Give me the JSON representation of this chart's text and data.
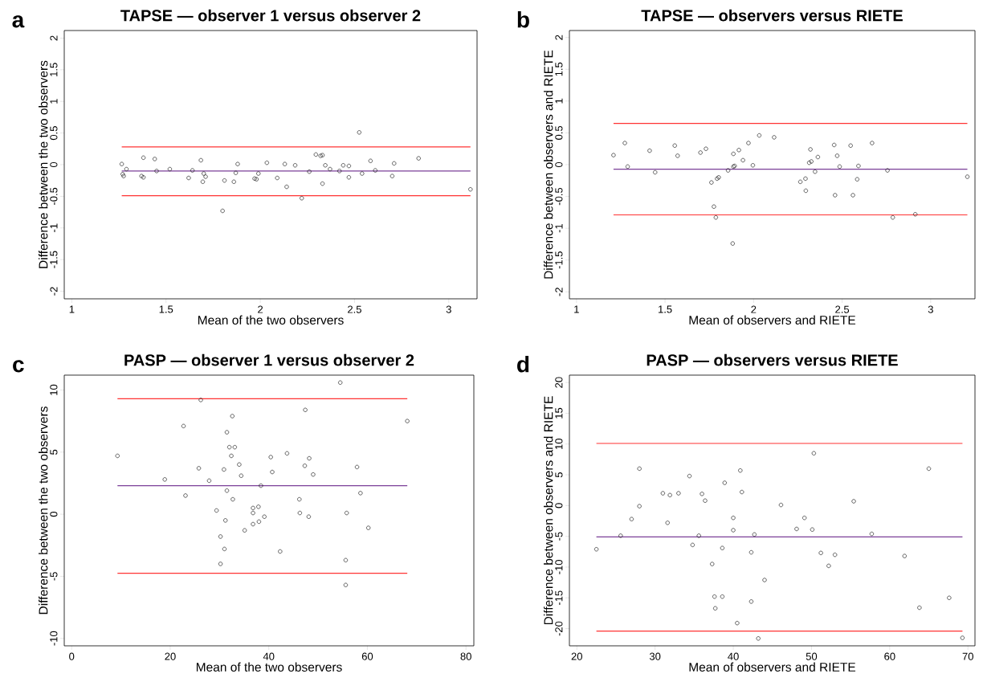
{
  "chart_data": [
    {
      "type": "scatter",
      "title": "TAPSE — observer 1 versus observer 2",
      "xlabel": "Mean of the two observers",
      "ylabel": "Difference between the two observers",
      "annotations": [
        "a"
      ],
      "marker": "circle",
      "color": "#222222",
      "x": [
        1.265,
        1.27,
        1.275,
        1.29,
        1.37,
        1.38,
        1.38,
        1.44,
        1.45,
        1.52,
        1.62,
        1.64,
        1.685,
        1.695,
        1.7,
        1.71,
        1.8,
        1.81,
        1.86,
        1.87,
        1.88,
        1.97,
        1.98,
        1.99,
        2.035,
        2.09,
        2.13,
        2.14,
        2.185,
        2.22,
        2.26,
        2.295,
        2.32,
        2.33,
        2.33,
        2.345,
        2.37,
        2.42,
        2.44,
        2.47,
        2.47,
        2.525,
        2.54,
        2.585,
        2.61,
        2.7,
        2.71,
        2.84,
        3.115
      ],
      "values": [
        0.01,
        -0.15,
        -0.18,
        -0.07,
        -0.18,
        0.11,
        -0.2,
        0.09,
        -0.1,
        -0.07,
        -0.21,
        -0.09,
        0.07,
        -0.27,
        -0.14,
        -0.19,
        -0.73,
        -0.25,
        -0.27,
        -0.13,
        0.01,
        -0.22,
        -0.23,
        -0.14,
        0.03,
        -0.21,
        0.01,
        -0.35,
        -0.01,
        -0.53,
        -0.11,
        0.16,
        0.14,
        0.15,
        -0.3,
        -0.01,
        -0.07,
        -0.1,
        -0.01,
        -0.02,
        -0.2,
        0.51,
        -0.14,
        0.06,
        -0.09,
        -0.18,
        0.02,
        0.1,
        -0.39
      ],
      "xlim": [
        0.96,
        3.15
      ],
      "ylim": [
        -2.12,
        2.12
      ],
      "xticks": [
        1,
        1.5,
        2,
        2.5,
        3
      ],
      "yticks": [
        -2,
        -1.5,
        -1,
        -0.5,
        0,
        0.5,
        1,
        1.5,
        2
      ],
      "ref_lines": [
        {
          "axis": "y",
          "value": 0.28,
          "color": "#ff3333"
        },
        {
          "axis": "y",
          "value": -0.1,
          "color": "#7b3f98"
        },
        {
          "axis": "y",
          "value": -0.49,
          "color": "#ff3333"
        }
      ]
    },
    {
      "type": "scatter",
      "title": "TAPSE — observers versus RIETE",
      "xlabel": "Mean of observers and RIETE",
      "ylabel": "Difference between observers and RIETE",
      "annotations": [
        "b"
      ],
      "marker": "circle",
      "color": "#222222",
      "x": [
        1.209,
        1.273,
        1.289,
        1.413,
        1.444,
        1.555,
        1.571,
        1.7,
        1.731,
        1.762,
        1.776,
        1.787,
        1.794,
        1.803,
        1.856,
        1.882,
        1.886,
        1.886,
        1.893,
        1.917,
        1.94,
        1.971,
        1.996,
        2.032,
        2.116,
        2.264,
        2.293,
        2.295,
        2.314,
        2.321,
        2.326,
        2.347,
        2.363,
        2.455,
        2.46,
        2.472,
        2.486,
        2.548,
        2.561,
        2.585,
        2.592,
        2.669,
        2.756,
        2.786,
        2.913,
        3.207
      ],
      "values": [
        0.15,
        0.34,
        -0.03,
        0.22,
        -0.12,
        0.3,
        0.14,
        0.19,
        0.25,
        -0.28,
        -0.66,
        -0.83,
        -0.22,
        -0.2,
        -0.09,
        -1.24,
        0.17,
        -0.03,
        -0.02,
        0.23,
        0.07,
        0.34,
        -0.01,
        0.46,
        0.43,
        -0.27,
        -0.22,
        -0.41,
        0.03,
        0.24,
        0.05,
        -0.11,
        0.12,
        0.31,
        -0.48,
        0.14,
        -0.03,
        0.3,
        -0.48,
        -0.23,
        -0.02,
        0.34,
        -0.09,
        -0.83,
        -0.78,
        -0.19
      ],
      "xlim": [
        0.96,
        3.25
      ],
      "ylim": [
        -2.11,
        2.11
      ],
      "xticks": [
        1,
        1.5,
        2,
        2.5,
        3
      ],
      "yticks": [
        -2,
        -1.5,
        -1,
        -0.5,
        0,
        0.5,
        1,
        1.5,
        2
      ],
      "ref_lines": [
        {
          "axis": "y",
          "value": 0.65,
          "color": "#ff3333"
        },
        {
          "axis": "y",
          "value": -0.07,
          "color": "#7b3f98"
        },
        {
          "axis": "y",
          "value": -0.79,
          "color": "#ff3333"
        }
      ]
    },
    {
      "type": "scatter",
      "title": "PASP — observer 1 versus observer 2",
      "xlabel": "Mean of the two observers",
      "ylabel": "Difference between the two observers",
      "annotations": [
        "c"
      ],
      "marker": "circle",
      "color": "#222222",
      "x": [
        9.3,
        18.9,
        22.7,
        23.1,
        25.8,
        26.2,
        27.9,
        29.4,
        30.2,
        30.2,
        30.9,
        31.0,
        31.2,
        31.5,
        31.5,
        32.0,
        32.4,
        32.6,
        32.7,
        33.1,
        34.0,
        34.4,
        35.1,
        36.8,
        36.8,
        36.8,
        37.9,
        38.0,
        38.4,
        39.1,
        40.4,
        40.7,
        42.3,
        43.7,
        46.2,
        46.3,
        47.3,
        47.4,
        48.1,
        48.2,
        49.0,
        54.5,
        55.6,
        55.6,
        55.8,
        57.9,
        58.6,
        60.2,
        68.1
      ],
      "values": [
        4.7,
        2.8,
        7.1,
        1.5,
        3.7,
        9.2,
        2.7,
        0.3,
        -1.8,
        -4.0,
        3.6,
        -2.8,
        -0.5,
        6.6,
        1.9,
        5.4,
        4.7,
        7.9,
        1.2,
        5.4,
        4.0,
        3.1,
        -1.3,
        0.5,
        0.1,
        -0.8,
        0.6,
        -0.6,
        2.3,
        -0.2,
        4.6,
        3.4,
        -3.0,
        4.9,
        1.2,
        0.1,
        3.9,
        8.4,
        -0.2,
        4.5,
        3.2,
        10.6,
        -3.7,
        -5.7,
        0.1,
        3.8,
        1.7,
        -1.1,
        7.5
      ],
      "xlim": [
        -1.5,
        81.6
      ],
      "ylim": [
        -10.6,
        11.2
      ],
      "xticks": [
        0,
        20,
        40,
        60,
        80
      ],
      "yticks": [
        -10,
        -5,
        0,
        5,
        10
      ],
      "ref_lines": [
        {
          "axis": "y",
          "value": 9.3,
          "color": "#ff3333"
        },
        {
          "axis": "y",
          "value": 2.3,
          "color": "#7b3f98"
        },
        {
          "axis": "y",
          "value": -4.75,
          "color": "#ff3333"
        }
      ]
    },
    {
      "type": "scatter",
      "title": "PASP — observers versus RIETE",
      "xlabel": "Mean of observers and RIETE",
      "ylabel": "Difference between observers and RIETE",
      "annotations": [
        "d"
      ],
      "marker": "circle",
      "color": "#222222",
      "x": [
        22.5,
        25.6,
        27.0,
        28.0,
        28.0,
        31.0,
        31.6,
        31.9,
        33.0,
        34.4,
        34.8,
        35.6,
        36.0,
        36.4,
        37.3,
        37.6,
        37.7,
        38.6,
        38.6,
        38.9,
        40.0,
        40.0,
        40.5,
        40.9,
        41.1,
        42.3,
        42.3,
        42.7,
        43.2,
        44.0,
        46.1,
        48.1,
        49.1,
        50.1,
        50.3,
        51.2,
        52.2,
        53.0,
        55.4,
        57.7,
        61.9,
        63.8,
        65.0,
        67.6,
        69.3
      ],
      "values": [
        -7.1,
        -4.9,
        -2.2,
        6.0,
        -0.1,
        2.0,
        -2.8,
        1.7,
        2.0,
        4.8,
        -6.4,
        -4.9,
        1.9,
        0.8,
        -9.5,
        -14.8,
        -16.7,
        -6.9,
        -14.8,
        3.7,
        -2.0,
        -4.0,
        -19.1,
        5.7,
        2.2,
        -7.6,
        -15.6,
        -4.7,
        -21.6,
        -12.1,
        0.1,
        -3.8,
        -2.0,
        -3.9,
        8.5,
        -7.7,
        -9.8,
        -8.0,
        0.7,
        -4.6,
        -8.2,
        -16.6,
        6.0,
        -15.0,
        -21.5
      ],
      "xlim": [
        19.05,
        70.9
      ],
      "ylim": [
        -22.8,
        21.2
      ],
      "xticks": [
        20,
        30,
        40,
        50,
        60,
        70
      ],
      "yticks": [
        -20,
        -15,
        -10,
        -5,
        0,
        5,
        10,
        15,
        20
      ],
      "ref_lines": [
        {
          "axis": "y",
          "value": 10.1,
          "color": "#ff3333"
        },
        {
          "axis": "y",
          "value": -5.1,
          "color": "#7b3f98"
        },
        {
          "axis": "y",
          "value": -20.4,
          "color": "#ff3333"
        }
      ]
    }
  ]
}
